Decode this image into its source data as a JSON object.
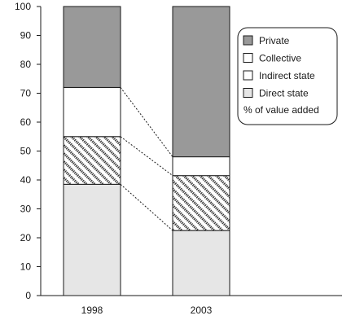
{
  "chart_data": {
    "type": "bar",
    "stacked": true,
    "categories": [
      "1998",
      "2003"
    ],
    "series": [
      {
        "name": "Direct state",
        "values": [
          38.5,
          22.5
        ],
        "color": "#e6e6e6",
        "pattern": "solid-light-gray"
      },
      {
        "name": "Indirect state",
        "values": [
          16.5,
          19.0
        ],
        "color": "#ffffff",
        "pattern": "diagonal-hatch"
      },
      {
        "name": "Collective",
        "values": [
          17.0,
          6.5
        ],
        "color": "#ffffff",
        "pattern": "none"
      },
      {
        "name": "Private",
        "values": [
          28.0,
          52.0
        ],
        "color": "#999999",
        "pattern": "solid-gray"
      }
    ],
    "legend_order": [
      "Private",
      "Collective",
      "Indirect state",
      "Direct state"
    ],
    "legend_note": "% of value added",
    "legend_position": "top-right",
    "title": "",
    "xlabel": "",
    "ylabel": "",
    "ylim": [
      0,
      100
    ],
    "yticks": [
      0,
      10,
      20,
      30,
      40,
      50,
      60,
      70,
      80,
      90,
      100
    ],
    "grid": false,
    "connector_lines": true
  }
}
